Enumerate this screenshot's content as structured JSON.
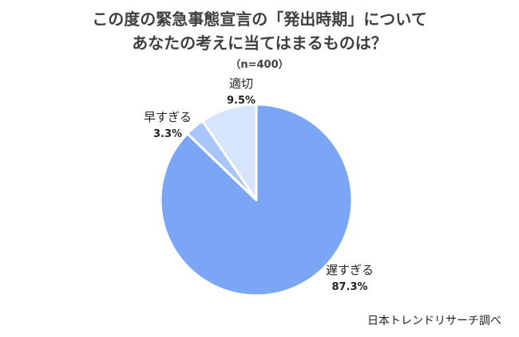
{
  "title_lines": [
    "この度の緊急事態宣言の「発出時期」について",
    "あなたの考えに当てはまるものは？"
  ],
  "sample_note": "（n=400）",
  "source": "日本トレンドリサーチ調べ",
  "chart_data": {
    "type": "pie",
    "slices": [
      {
        "label": "遅すぎる",
        "value": 87.3,
        "value_label": "87.3%",
        "color": "#7aa6f5"
      },
      {
        "label": "早すぎる",
        "value": 3.3,
        "value_label": "3.3%",
        "color": "#a9c6fa"
      },
      {
        "label": "適切",
        "value": 9.5,
        "value_label": "9.5%",
        "color": "#d6e4fc"
      }
    ],
    "start": "12 o'clock",
    "direction": "clockwise",
    "legend": "none"
  }
}
